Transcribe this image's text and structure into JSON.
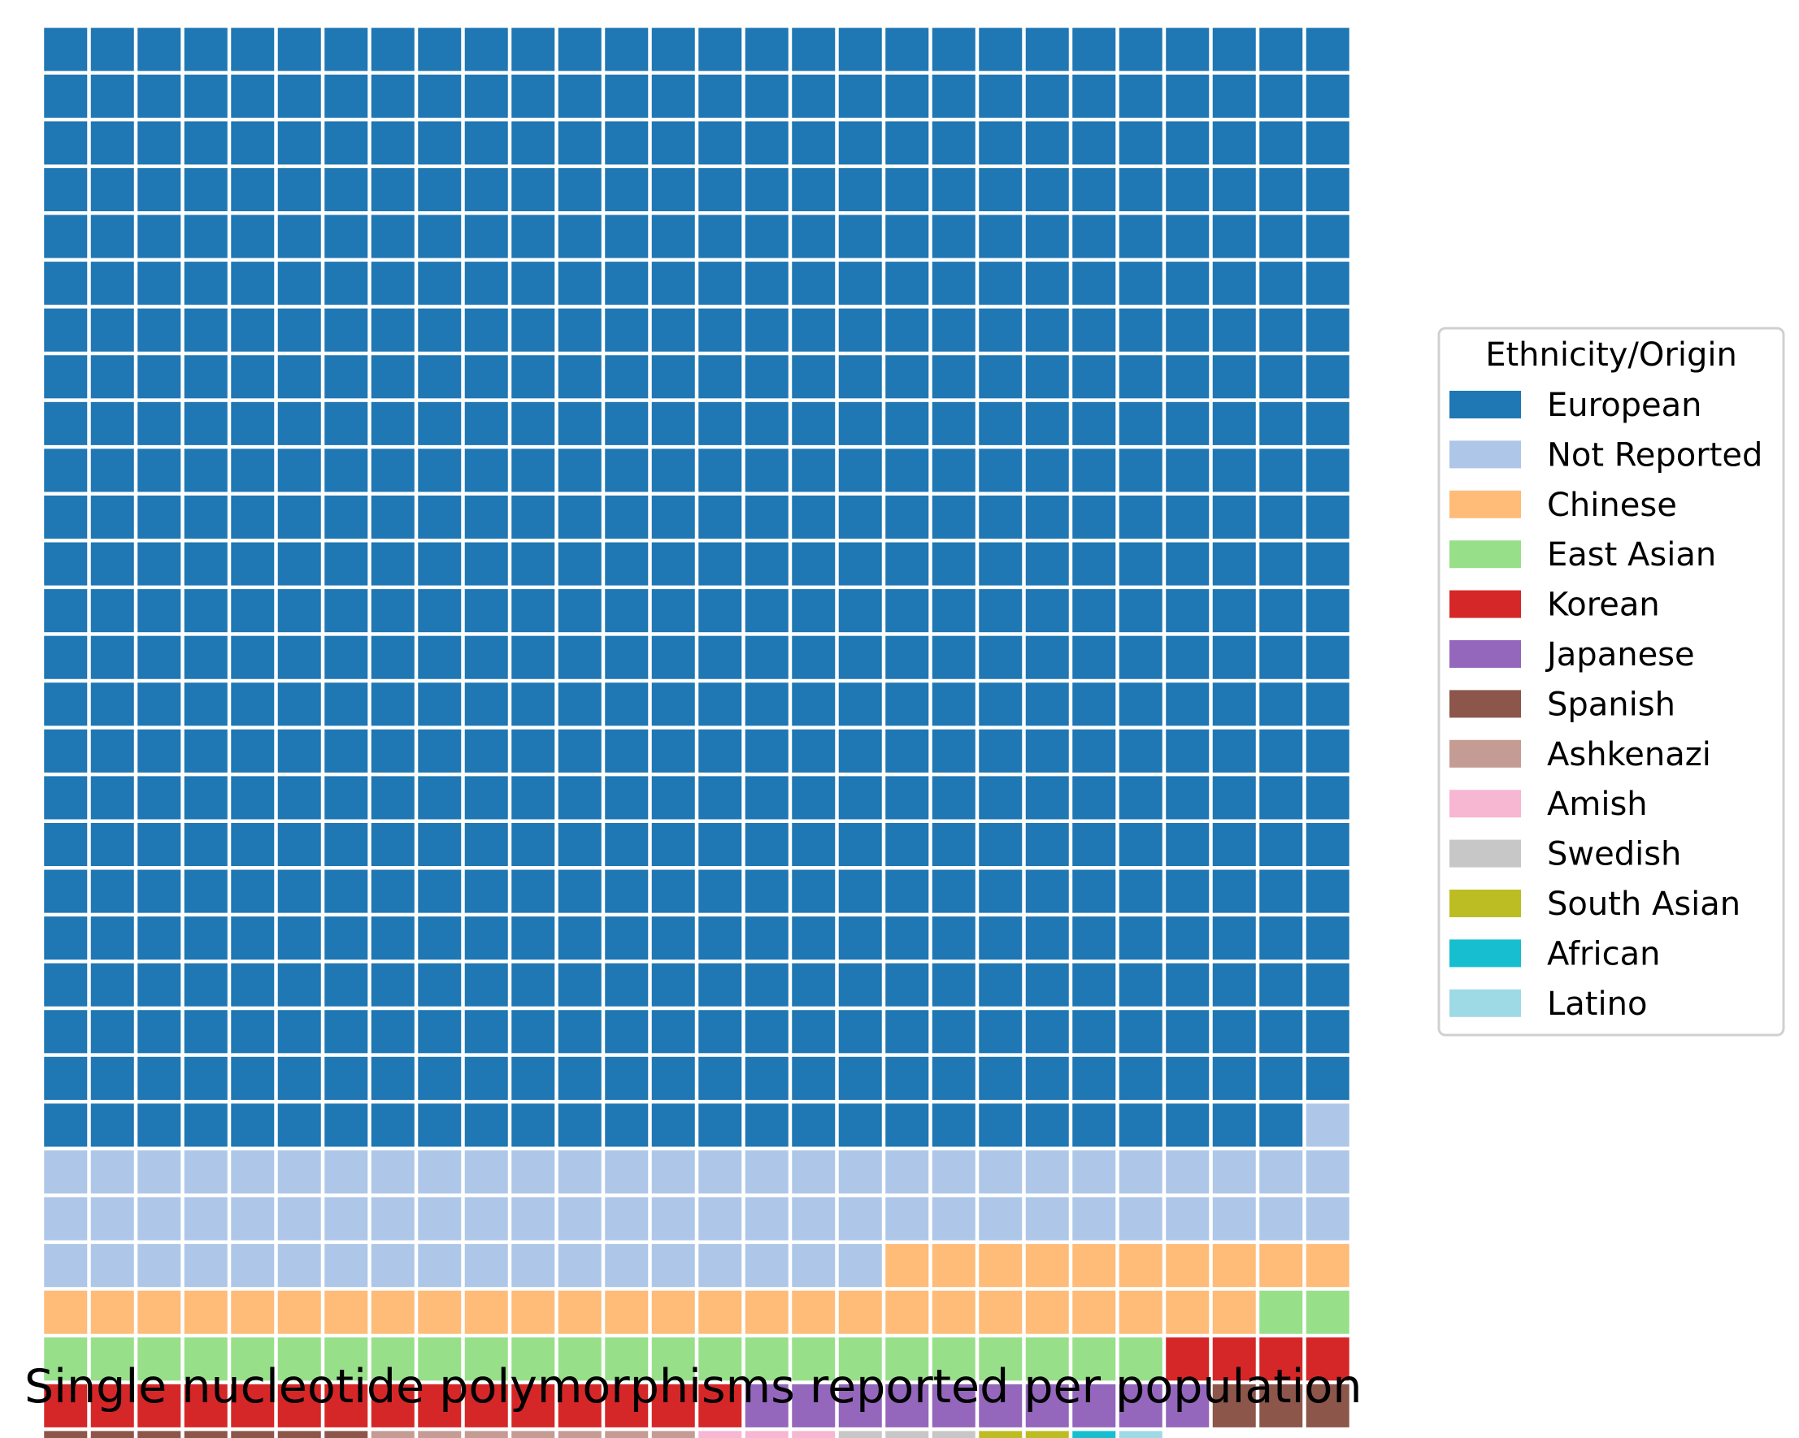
{
  "chart_data": {
    "type": "waffle",
    "caption": "Single nucleotide polymorphisms reported per population",
    "grid": {
      "rows": 28,
      "columns": 28
    },
    "legend": {
      "title": "Ethnicity/Origin",
      "placement": "right"
    },
    "series": [
      {
        "name": "European",
        "value": 671,
        "color": "#1f77b4"
      },
      {
        "name": "Not Reported",
        "value": 75,
        "color": "#aec7e8"
      },
      {
        "name": "Chinese",
        "value": 36,
        "color": "#ffbb78"
      },
      {
        "name": "East Asian",
        "value": 26,
        "color": "#98df8a"
      },
      {
        "name": "Korean",
        "value": 19,
        "color": "#d62728"
      },
      {
        "name": "Japanese",
        "value": 10,
        "color": "#9467bd"
      },
      {
        "name": "Spanish",
        "value": 10,
        "color": "#8c564b"
      },
      {
        "name": "Ashkenazi",
        "value": 7,
        "color": "#c49c94"
      },
      {
        "name": "Amish",
        "value": 3,
        "color": "#f7b6d2"
      },
      {
        "name": "Swedish",
        "value": 3,
        "color": "#c7c7c7"
      },
      {
        "name": "South Asian",
        "value": 2,
        "color": "#bcbd22"
      },
      {
        "name": "African",
        "value": 1,
        "color": "#17becf"
      },
      {
        "name": "Latino",
        "value": 1,
        "color": "#9edae5"
      }
    ]
  }
}
